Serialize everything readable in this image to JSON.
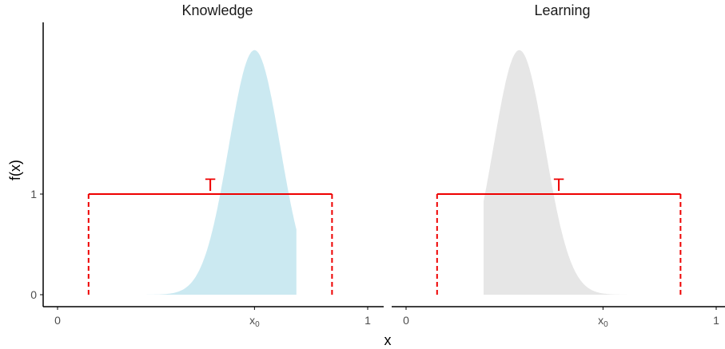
{
  "chart_data": {
    "type": "area",
    "ylabel": "f(x)",
    "xlabel": "x",
    "panels": [
      {
        "title": "Knowledge",
        "fill": "#cbe9f1",
        "mode": 0.635,
        "peak": 2.43,
        "x_ticks": [
          {
            "value": 0,
            "label": "0"
          },
          {
            "value": 0.635,
            "label": "x",
            "sub": "0"
          },
          {
            "value": 1,
            "label": "1"
          }
        ],
        "interval": {
          "label": "T",
          "from": 0.1,
          "to": 0.885,
          "height": 1
        }
      },
      {
        "title": "Learning",
        "fill": "#e6e6e6",
        "mode": 0.365,
        "peak": 2.43,
        "x_ticks": [
          {
            "value": 0,
            "label": "0"
          },
          {
            "value": 0.635,
            "label": "x",
            "sub": "0"
          },
          {
            "value": 1,
            "label": "1"
          }
        ],
        "interval": {
          "label": "T",
          "from": 0.1,
          "to": 0.885,
          "height": 1
        }
      }
    ],
    "y_ticks": [
      {
        "value": 0,
        "label": "0"
      },
      {
        "value": 1,
        "label": "1"
      }
    ],
    "interval_color": "#ee0000",
    "axis_color": "#000000",
    "tick_label_color": "#4d4d4d"
  }
}
